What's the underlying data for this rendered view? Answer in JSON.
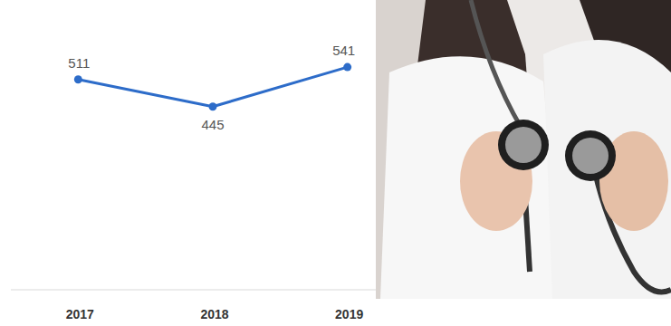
{
  "chart_data": {
    "type": "line",
    "categories": [
      "2017",
      "2018",
      "2019"
    ],
    "values": [
      511,
      445,
      541
    ],
    "color": "#2d6cc9",
    "ylim": [
      0,
      660
    ],
    "yticks": [],
    "grid": false,
    "data_labels": true,
    "tick_labels": "x",
    "marker": "circle"
  }
}
